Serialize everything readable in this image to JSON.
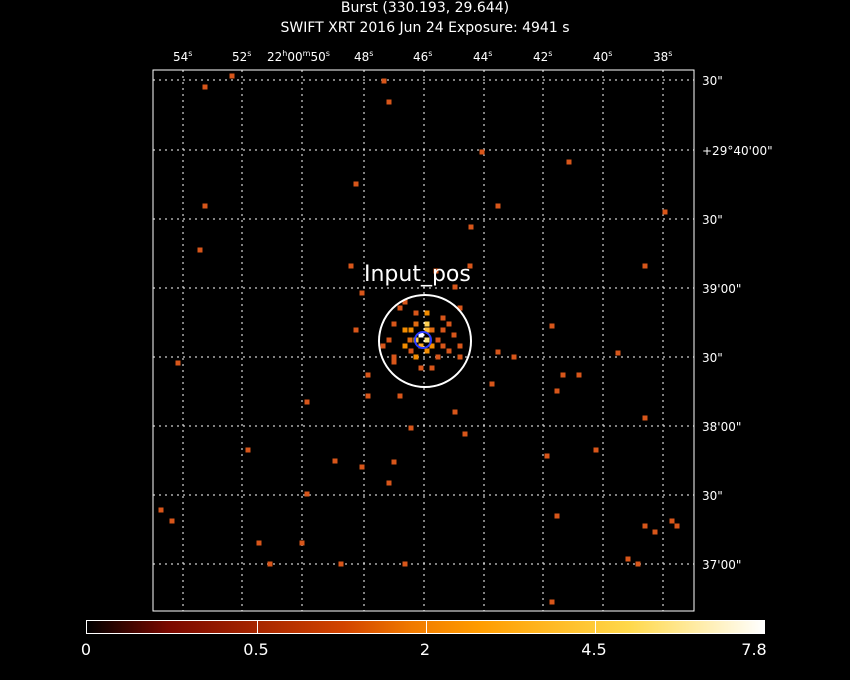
{
  "header": {
    "title_line1": "Burst (330.193, 29.644)",
    "title_line2": "SWIFT XRT   2016 Jun 24    Exposure: 4941 s"
  },
  "ra_ticks": [
    {
      "main": "54",
      "unit": "s"
    },
    {
      "main": "52",
      "unit": "s"
    },
    {
      "main": "22",
      "unit": "h",
      "main2": "00",
      "unit2": "m",
      "main3": "50",
      "unit3": "s"
    },
    {
      "main": "48",
      "unit": "s"
    },
    {
      "main": "46",
      "unit": "s"
    },
    {
      "main": "44",
      "unit": "s"
    },
    {
      "main": "42",
      "unit": "s"
    },
    {
      "main": "40",
      "unit": "s"
    },
    {
      "main": "38",
      "unit": "s"
    }
  ],
  "dec_ticks": [
    "30\"",
    "+29°40'00\"",
    "30\"",
    "39'00\"",
    "30\"",
    "38'00\"",
    "30\"",
    "37'00\""
  ],
  "region_label": "Input_pos",
  "colorbar": {
    "labels": [
      "0",
      "0.5",
      "2",
      "4.5",
      "7.8"
    ],
    "colors": {
      "low": "#000000",
      "mid": "#f07a00",
      "high": "#ffffff"
    }
  }
}
